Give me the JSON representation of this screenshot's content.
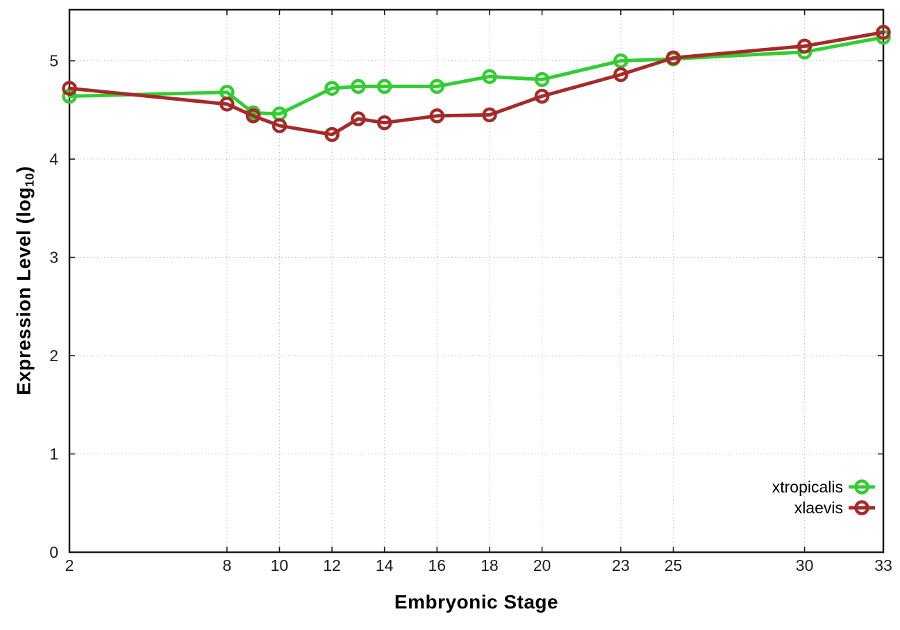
{
  "page": {
    "background_color": "#ffffff",
    "axis_color": "#1a1a1a",
    "grid_color": "#bdbdbd",
    "tick_label_color": "#1c1c1c",
    "legend_text_color": "#000000"
  },
  "chart_data": {
    "type": "line",
    "title": "",
    "xlabel": "Embryonic Stage",
    "ylabel": {
      "main": "Expression Level (log",
      "sub": "10",
      "end": ")"
    },
    "x": [
      2,
      8,
      9,
      10,
      12,
      13,
      14,
      16,
      18,
      20,
      23,
      25,
      30,
      33
    ],
    "series": [
      {
        "name": "xtropicalis",
        "color": "#32cd32",
        "values": [
          4.64,
          4.68,
          4.47,
          4.46,
          4.72,
          4.74,
          4.74,
          4.74,
          4.84,
          4.81,
          5.0,
          5.02,
          5.09,
          5.24
        ]
      },
      {
        "name": "xlaevis",
        "color": "#a52a2a",
        "values": [
          4.72,
          4.56,
          4.44,
          4.34,
          4.25,
          4.41,
          4.37,
          4.44,
          4.45,
          4.64,
          4.86,
          5.03,
          5.15,
          5.29
        ]
      }
    ],
    "x_ticks": [
      2,
      8,
      10,
      12,
      14,
      16,
      18,
      20,
      23,
      25,
      30,
      33
    ],
    "y_ticks": [
      0,
      1,
      2,
      3,
      4,
      5
    ],
    "xlim": [
      2,
      33
    ],
    "ylim": [
      0,
      5.52
    ],
    "grid": true,
    "legend_position": "inside-right-lower",
    "marker": "open-circle"
  }
}
